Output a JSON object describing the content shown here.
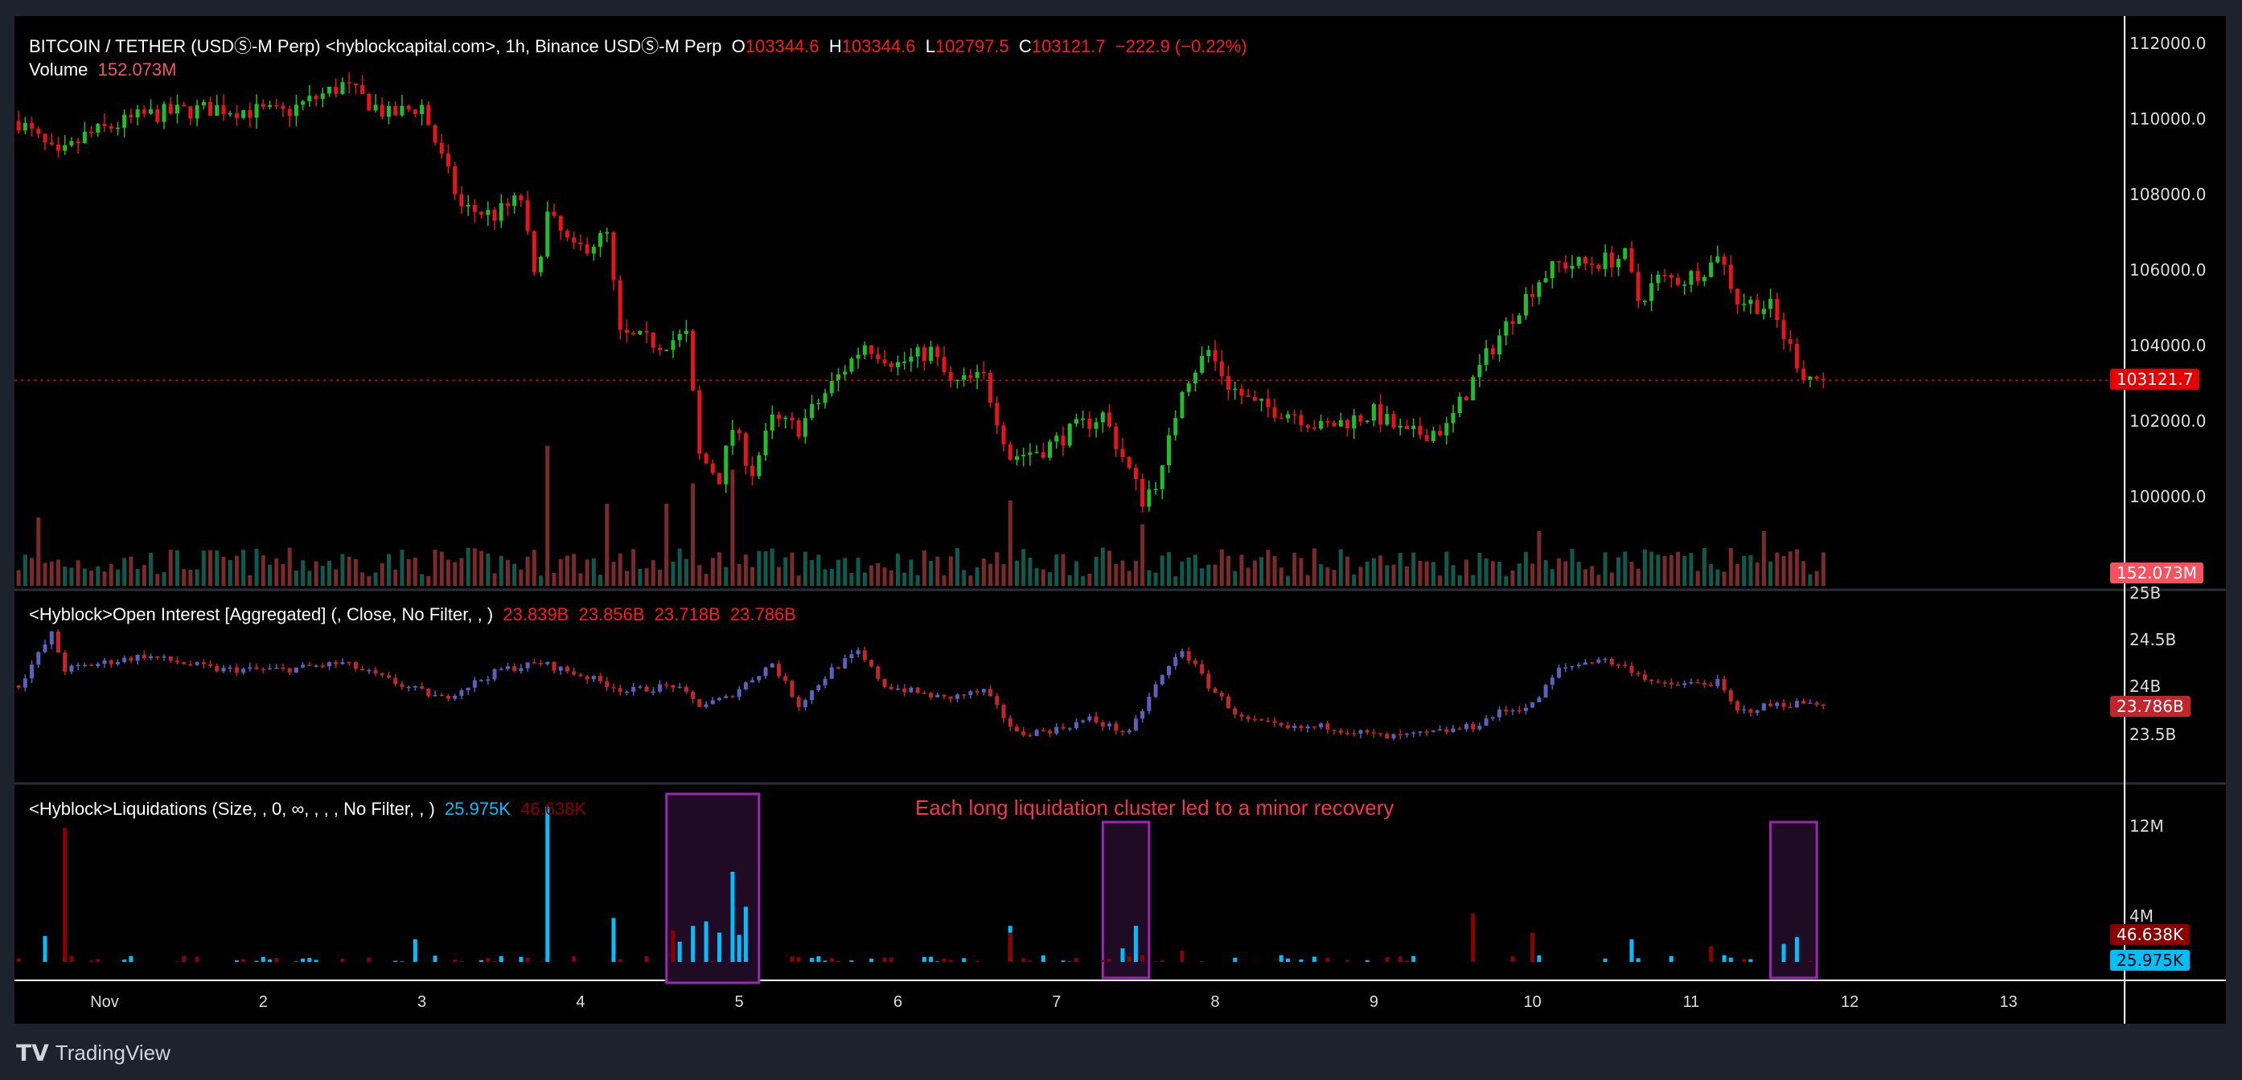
{
  "header": {
    "symbol": "BITCOIN / TETHER (USDⓈ-M Perp) <hyblockcapital.com>, 1h, Binance USDⓈ-M Perp",
    "o_label": "O",
    "o": "103344.6",
    "h_label": "H",
    "h": "103344.6",
    "l_label": "L",
    "l": "102797.5",
    "c_label": "C",
    "c": "103121.7",
    "change": "−222.9 (−0.22%)"
  },
  "volume": {
    "label": "Volume",
    "value": "152.073M"
  },
  "oi": {
    "title": "<Hyblock>Open Interest [Aggregated] (, Close, No Filter, , )",
    "values": [
      "23.839B",
      "23.856B",
      "23.718B",
      "23.786B"
    ],
    "last_tag": "23.786B"
  },
  "liq": {
    "title": "<Hyblock>Liquidations (Size, , 0, ∞, , , , No Filter, , )",
    "long_value": "25.975K",
    "short_value": "46.638K"
  },
  "annotation": "Each long liquidation cluster led to a minor recovery",
  "price_axis": [
    "112000.0",
    "110000.0",
    "108000.0",
    "106000.0",
    "104000.0",
    "102000.0",
    "100000.0"
  ],
  "price_tag": "103121.7",
  "volume_tag": "152.073M",
  "oi_axis": [
    "25B",
    "24.5B",
    "24B",
    "23.5B"
  ],
  "liq_axis": [
    "12M",
    "4M"
  ],
  "dates": [
    "Nov",
    "2",
    "3",
    "4",
    "5",
    "6",
    "7",
    "8",
    "9",
    "10",
    "11",
    "12",
    "13"
  ],
  "brand": "TradingView",
  "colors": {
    "up": "#1fbf2a",
    "down": "#e8141c",
    "oi_up": "#5b5fbd",
    "oi_down": "#c0262b",
    "long": "#00bfff",
    "short": "#8b0000",
    "box": "#9c27b0"
  },
  "chart_data": {
    "type": "candlestick",
    "price_path": [
      [
        "Oct 31 11",
        110000
      ],
      [
        "Oct 31 17",
        109000
      ],
      [
        "Oct 31 21",
        109600
      ],
      [
        "Nov 1 06",
        110150
      ],
      [
        "Nov 1 17",
        110350
      ],
      [
        "Nov 2 03",
        110200
      ],
      [
        "Nov 2 12",
        110950
      ],
      [
        "Nov 2 19",
        110150
      ],
      [
        "Nov 3 00",
        110400
      ],
      [
        "Nov 3 03",
        109000
      ],
      [
        "Nov 3 06",
        107700
      ],
      [
        "Nov 3 11",
        107500
      ],
      [
        "Nov 3 15",
        107950
      ],
      [
        "Nov 3 17",
        105800
      ],
      [
        "Nov 3 19",
        107500
      ],
      [
        "Nov 3 23",
        106550
      ],
      [
        "Nov 4 04",
        106950
      ],
      [
        "Nov 4 06",
        104300
      ],
      [
        "Nov 4 12",
        104100
      ],
      [
        "Nov 4 16",
        104300
      ],
      [
        "Nov 4 18",
        101100
      ],
      [
        "Nov 4 21",
        100550
      ],
      [
        "Nov 4 23",
        101850
      ],
      [
        "Nov 5 02",
        100700
      ],
      [
        "Nov 5 05",
        102050
      ],
      [
        "Nov 5 09",
        101850
      ],
      [
        "Nov 5 14",
        103000
      ],
      [
        "Nov 5 19",
        104100
      ],
      [
        "Nov 6 00",
        103550
      ],
      [
        "Nov 6 05",
        103900
      ],
      [
        "Nov 6 08",
        103000
      ],
      [
        "Nov 6 13",
        103200
      ],
      [
        "Nov 6 17",
        101100
      ],
      [
        "Nov 6 22",
        101300
      ],
      [
        "Nov 7 03",
        101850
      ],
      [
        "Nov 7 07",
        102200
      ],
      [
        "Nov 7 10",
        101100
      ],
      [
        "Nov 7 13",
        99950
      ],
      [
        "Nov 7 16",
        100700
      ],
      [
        "Nov 7 19",
        103000
      ],
      [
        "Nov 7 23",
        103900
      ],
      [
        "Nov 8 02",
        103000
      ],
      [
        "Nov 8 06",
        102450
      ],
      [
        "Nov 8 12",
        102250
      ],
      [
        "Nov 8 16",
        101850
      ],
      [
        "Nov 9 00",
        102250
      ],
      [
        "Nov 9 05",
        101650
      ],
      [
        "Nov 9 11",
        101850
      ],
      [
        "Nov 9 14",
        102800
      ],
      [
        "Nov 9 17",
        103750
      ],
      [
        "Nov 9 21",
        104850
      ],
      [
        "Nov 10 01",
        105800
      ],
      [
        "Nov 10 04",
        106200
      ],
      [
        "Nov 10 08",
        106200
      ],
      [
        "Nov 10 14",
        106400
      ],
      [
        "Nov 10 16",
        105250
      ],
      [
        "Nov 10 19",
        105800
      ],
      [
        "Nov 10 23",
        105800
      ],
      [
        "Nov 11 03",
        106200
      ],
      [
        "Nov 11 04",
        106550
      ],
      [
        "Nov 11 07",
        105250
      ],
      [
        "Nov 11 12",
        105050
      ],
      [
        "Nov 11 14",
        104300
      ],
      [
        "Nov 11 17",
        103300
      ],
      [
        "Nov 11 20",
        103121.7
      ]
    ],
    "price_ylim": [
      98500,
      112500
    ],
    "oi_path": [
      [
        "Oct 31 11",
        24.0
      ],
      [
        "Oct 31 16",
        24.55
      ],
      [
        "Oct 31 18",
        24.17
      ],
      [
        "Nov 1 06",
        24.32
      ],
      [
        "Nov 1 17",
        24.17
      ],
      [
        "Nov 2 03",
        24.17
      ],
      [
        "Nov 2 12",
        24.24
      ],
      [
        "Nov 2 21",
        24.0
      ],
      [
        "Nov 3 03",
        23.86
      ],
      [
        "Nov 3 12",
        24.17
      ],
      [
        "Nov 3 18",
        24.24
      ],
      [
        "Nov 4 01",
        24.09
      ],
      [
        "Nov 4 07",
        23.94
      ],
      [
        "Nov 4 14",
        24.0
      ],
      [
        "Nov 4 18",
        23.79
      ],
      [
        "Nov 4 22",
        23.86
      ],
      [
        "Nov 5 05",
        24.24
      ],
      [
        "Nov 5 09",
        23.79
      ],
      [
        "Nov 5 14",
        24.17
      ],
      [
        "Nov 5 18",
        24.35
      ],
      [
        "Nov 5 22",
        24.0
      ],
      [
        "Nov 6 07",
        23.86
      ],
      [
        "Nov 6 13",
        23.94
      ],
      [
        "Nov 6 18",
        23.48
      ],
      [
        "Nov 7 00",
        23.53
      ],
      [
        "Nov 7 05",
        23.64
      ],
      [
        "Nov 7 11",
        23.48
      ],
      [
        "Nov 7 15",
        24.0
      ],
      [
        "Nov 7 19",
        24.39
      ],
      [
        "Nov 7 23",
        24.0
      ],
      [
        "Nov 8 04",
        23.64
      ],
      [
        "Nov 8 11",
        23.53
      ],
      [
        "Nov 8 17",
        23.56
      ],
      [
        "Nov 9 02",
        23.44
      ],
      [
        "Nov 9 08",
        23.48
      ],
      [
        "Nov 9 15",
        23.56
      ],
      [
        "Nov 9 19",
        23.71
      ],
      [
        "Nov 10 00",
        23.79
      ],
      [
        "Nov 10 04",
        24.17
      ],
      [
        "Nov 10 10",
        24.29
      ],
      [
        "Nov 10 15",
        24.17
      ],
      [
        "Nov 10 19",
        24.0
      ],
      [
        "Nov 11 04",
        24.03
      ],
      [
        "Nov 11 07",
        23.71
      ],
      [
        "Nov 11 12",
        23.79
      ],
      [
        "Nov 11 19",
        23.82
      ],
      [
        "Nov 11 20",
        23.786
      ]
    ],
    "volume_spikes_M": [
      [
        "Oct 31 14",
        1000
      ],
      [
        "Nov 3 19",
        2050
      ],
      [
        "Nov 4 04",
        1200
      ],
      [
        "Nov 4 13",
        1200
      ],
      [
        "Nov 4 17",
        1500
      ],
      [
        "Nov 4 23",
        1700
      ],
      [
        "Nov 6 17",
        1250
      ],
      [
        "Nov 7 13",
        900
      ],
      [
        "Nov 10 01",
        800
      ],
      [
        "Nov 11 11",
        800
      ]
    ],
    "liquidations_long_M": [
      [
        "Oct 31 15",
        2.3
      ],
      [
        "Nov 2 23",
        2.0
      ],
      [
        "Nov 3 19",
        13.8
      ],
      [
        "Nov 4 05",
        3.9
      ],
      [
        "Nov 4 15",
        1.8
      ],
      [
        "Nov 4 17",
        3.2
      ],
      [
        "Nov 4 19",
        3.6
      ],
      [
        "Nov 4 21",
        2.6
      ],
      [
        "Nov 4 23",
        8.0
      ],
      [
        "Nov 5 00",
        2.4
      ],
      [
        "Nov 5 01",
        4.9
      ],
      [
        "Nov 6 17",
        3.2
      ],
      [
        "Nov 7 10",
        1.2
      ],
      [
        "Nov 7 12",
        3.2
      ],
      [
        "Nov 10 15",
        2.0
      ],
      [
        "Nov 11 14",
        1.6
      ],
      [
        "Nov 11 16",
        2.2
      ]
    ],
    "liquidations_short_M": [
      [
        "Oct 31 18",
        11.9
      ],
      [
        "Nov 4 14",
        2.8
      ],
      [
        "Nov 6 17",
        2.6
      ],
      [
        "Nov 7 19",
        1.0
      ],
      [
        "Nov 9 15",
        4.3
      ],
      [
        "Nov 10 00",
        2.6
      ],
      [
        "Nov 11 03",
        1.4
      ]
    ],
    "highlight_boxes": [
      [
        "Nov 4 13",
        "Nov 5 03"
      ],
      [
        "Nov 7 07",
        "Nov 7 14"
      ],
      [
        "Nov 11 12",
        "Nov 11 19"
      ]
    ]
  }
}
